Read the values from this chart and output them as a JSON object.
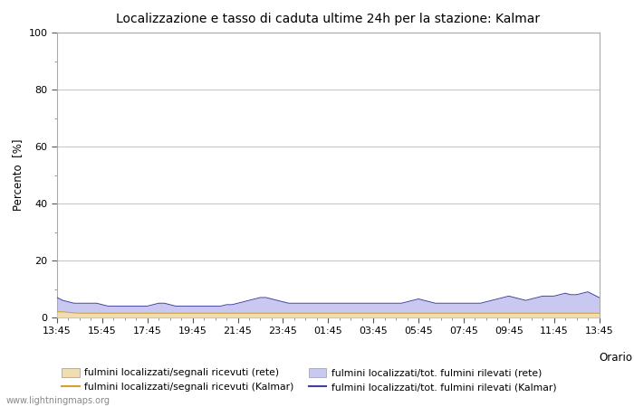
{
  "title": "Localizzazione e tasso di caduta ultime 24h per la stazione: Kalmar",
  "ylabel": "Percento  [%]",
  "xlabel": "Orario",
  "ylim": [
    0,
    100
  ],
  "yticks_major": [
    0,
    20,
    40,
    60,
    80,
    100
  ],
  "yticks_minor": [
    10,
    30,
    50,
    70,
    90
  ],
  "x_labels": [
    "13:45",
    "15:45",
    "17:45",
    "19:45",
    "21:45",
    "23:45",
    "01:45",
    "03:45",
    "05:45",
    "07:45",
    "09:45",
    "11:45",
    "13:45"
  ],
  "background_color": "#ffffff",
  "plot_bg_color": "#ffffff",
  "grid_major_color": "#c8c8c8",
  "grid_minor_color": "#e0e0e0",
  "fill_rete_color": "#f0deb0",
  "fill_kalmar_color": "#c8c8f0",
  "line_rete_color": "#d4a030",
  "line_kalmar_color": "#4040a0",
  "watermark": "www.lightningmaps.org",
  "legend": [
    {
      "label": "fulmini localizzati/segnali ricevuti (rete)",
      "type": "patch",
      "color": "#f0deb0"
    },
    {
      "label": "fulmini localizzati/segnali ricevuti (Kalmar)",
      "type": "line",
      "color": "#d4a030"
    },
    {
      "label": "fulmini localizzati/tot. fulmini rilevati (rete)",
      "type": "patch",
      "color": "#c8c8f0"
    },
    {
      "label": "fulmini localizzati/tot. fulmini rilevati (Kalmar)",
      "type": "line",
      "color": "#4040a0"
    }
  ],
  "kalmar_fill_shape": [
    7.0,
    6.0,
    5.5,
    5.0,
    5.0,
    5.0,
    5.0,
    5.0,
    4.5,
    4.0,
    4.0,
    4.0,
    4.0,
    4.0,
    4.0,
    4.0,
    4.0,
    4.5,
    5.0,
    5.0,
    4.5,
    4.0,
    4.0,
    4.0,
    4.0,
    4.0,
    4.0,
    4.0,
    4.0,
    4.0,
    4.5,
    4.5,
    5.0,
    5.5,
    6.0,
    6.5,
    7.0,
    7.0,
    6.5,
    6.0,
    5.5,
    5.0,
    5.0,
    5.0,
    5.0,
    5.0,
    5.0,
    5.0,
    5.0,
    5.0,
    5.0,
    5.0,
    5.0,
    5.0,
    5.0,
    5.0,
    5.0,
    5.0,
    5.0,
    5.0,
    5.0,
    5.0,
    5.5,
    6.0,
    6.5,
    6.0,
    5.5,
    5.0,
    5.0,
    5.0,
    5.0,
    5.0,
    5.0,
    5.0,
    5.0,
    5.0,
    5.5,
    6.0,
    6.5,
    7.0,
    7.5,
    7.0,
    6.5,
    6.0,
    6.5,
    7.0,
    7.5,
    7.5,
    7.5,
    8.0,
    8.5,
    8.0,
    8.0,
    8.5,
    9.0,
    8.0,
    7.0
  ],
  "rete_fill_shape": [
    2.0,
    2.0,
    1.8,
    1.6,
    1.5,
    1.5,
    1.5,
    1.5,
    1.5,
    1.5,
    1.5,
    1.5,
    1.5,
    1.5,
    1.5,
    1.5,
    1.5,
    1.5,
    1.5,
    1.5,
    1.5,
    1.5,
    1.5,
    1.5,
    1.5,
    1.5,
    1.5,
    1.5,
    1.5,
    1.5,
    1.5,
    1.5,
    1.5,
    1.5,
    1.5,
    1.5,
    1.5,
    1.5,
    1.5,
    1.5,
    1.5,
    1.5,
    1.5,
    1.5,
    1.5,
    1.5,
    1.5,
    1.5,
    1.5,
    1.5,
    1.5,
    1.5,
    1.5,
    1.5,
    1.5,
    1.5,
    1.5,
    1.5,
    1.5,
    1.5,
    1.5,
    1.5,
    1.5,
    1.5,
    1.5,
    1.5,
    1.5,
    1.5,
    1.5,
    1.5,
    1.5,
    1.5,
    1.5,
    1.5,
    1.5,
    1.5,
    1.5,
    1.5,
    1.5,
    1.5,
    1.5,
    1.5,
    1.5,
    1.5,
    1.5,
    1.5,
    1.5,
    1.5,
    1.5,
    1.5,
    1.5,
    1.5,
    1.5,
    1.5,
    1.5,
    1.5,
    1.5
  ]
}
